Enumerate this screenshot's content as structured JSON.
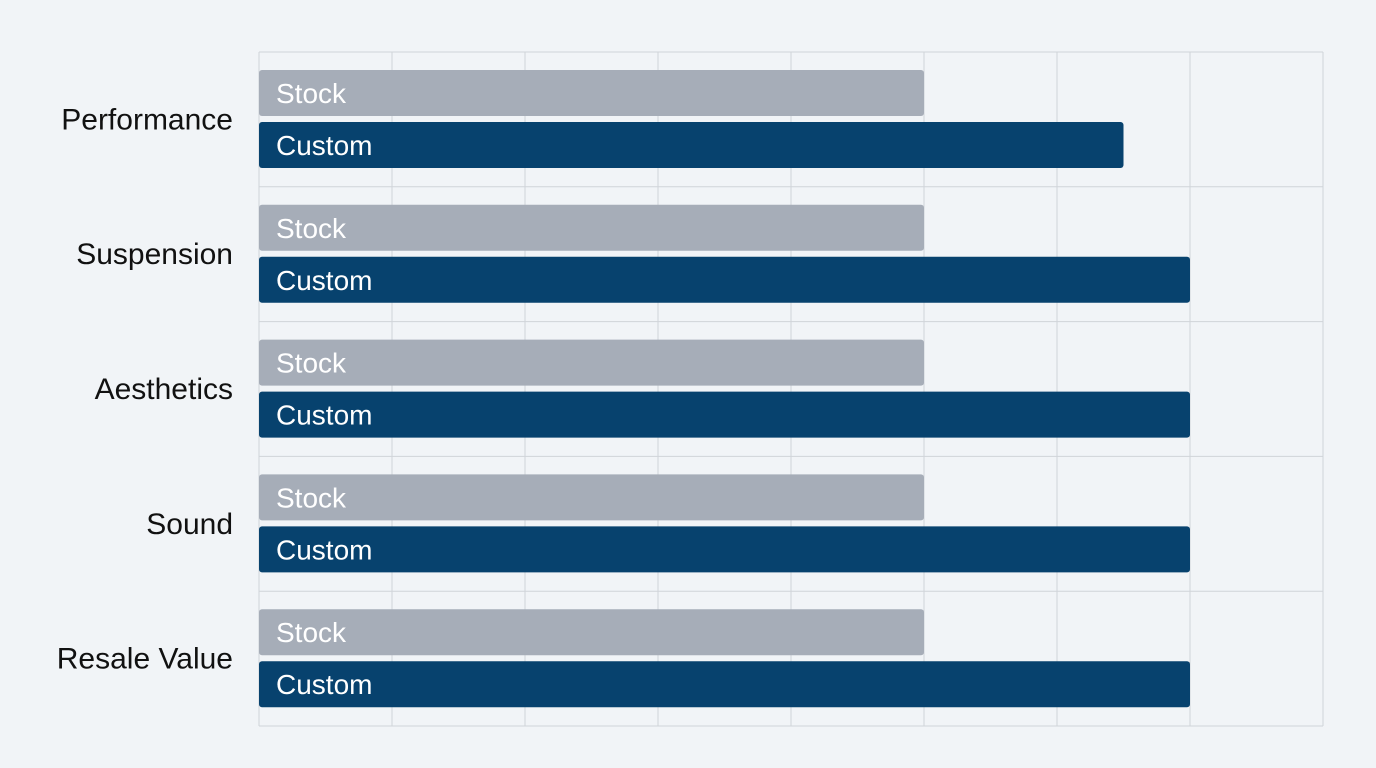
{
  "chart_data": {
    "type": "bar",
    "orientation": "horizontal",
    "categories": [
      "Performance",
      "Suspension",
      "Aesthetics",
      "Sound",
      "Resale Value"
    ],
    "series": [
      {
        "name": "Stock",
        "values": [
          5,
          5,
          5,
          5,
          5
        ],
        "color": "#a6adb8"
      },
      {
        "name": "Custom",
        "values": [
          6.5,
          7,
          7,
          7,
          7
        ],
        "color": "#07426e"
      }
    ],
    "xlim": [
      0,
      8
    ],
    "grid": true,
    "title": "",
    "xlabel": "",
    "ylabel": "",
    "bar_labels": "series name inside bar"
  }
}
